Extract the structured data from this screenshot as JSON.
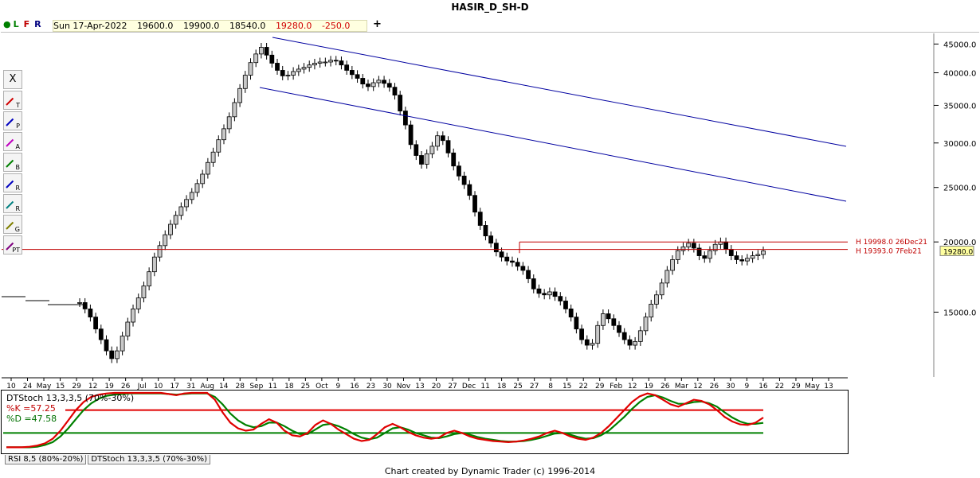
{
  "header": {
    "title": "HASIR_D_SH-D",
    "lfr": {
      "l": "L",
      "f": "F",
      "r": "R"
    },
    "ohlc": {
      "date": "Sun 17-Apr-2022",
      "open": "19600.0",
      "high": "19900.0",
      "low": "18540.0",
      "close": "19280.0",
      "change": "-250.0"
    },
    "plus": "+"
  },
  "toolbox": {
    "close_label": "X",
    "tools": [
      {
        "name": "trendline-tool",
        "icon": "trendline-icon",
        "letter": "T",
        "color": "#d00000"
      },
      {
        "name": "parallel-tool",
        "icon": "parallel-lines-icon",
        "letter": "P",
        "color": "#0000c0"
      },
      {
        "name": "alt-tool",
        "icon": "alt-projection-icon",
        "letter": "A",
        "color": "#c000c0"
      },
      {
        "name": "band-tool",
        "icon": "band-icon",
        "letter": "B",
        "color": "#008000"
      },
      {
        "name": "retracement-tool",
        "icon": "retracement-icon",
        "letter": "R",
        "color": "#0000c0"
      },
      {
        "name": "ratio-tool",
        "icon": "ratio-icon",
        "letter": "R",
        "color": "#008080"
      },
      {
        "name": "gann-tool",
        "icon": "gann-fan-icon",
        "letter": "G",
        "color": "#808000"
      },
      {
        "name": "price-time-tool",
        "icon": "price-time-icon",
        "letter": "PT",
        "color": "#800080"
      }
    ]
  },
  "chart_data": {
    "type": "candlestick",
    "title": "HASIR_D_SH-D",
    "xlabel": "",
    "ylabel": "",
    "ylim": [
      11500,
      47000
    ],
    "y_scale": "log",
    "y_ticks": [
      15000,
      20000,
      25000,
      30000,
      35000,
      40000,
      45000
    ],
    "y_tick_labels": [
      "15000.0",
      "20000.0",
      "25000.0",
      "30000.0",
      "35000.0",
      "40000.0",
      "45000.0"
    ],
    "x_tick_labels": [
      "10",
      "24",
      "May",
      "15",
      "29",
      "12",
      "19",
      "26",
      "Jul",
      "10",
      "17",
      "31",
      "Aug",
      "14",
      "28",
      "Sep",
      "11",
      "18",
      "25",
      "Oct",
      "9",
      "16",
      "23",
      "30",
      "Nov",
      "13",
      "20",
      "27",
      "Dec",
      "11",
      "18",
      "25",
      "27",
      "8",
      "15",
      "22",
      "29",
      "Feb",
      "12",
      "19",
      "26",
      "Mar",
      "12",
      "26",
      "30",
      "9",
      "16",
      "22",
      "29",
      "May",
      "13"
    ],
    "series_close_path": [
      15600,
      15200,
      14700,
      14000,
      13400,
      12800,
      12400,
      12800,
      13600,
      14400,
      15200,
      15900,
      16700,
      17700,
      18800,
      19700,
      20600,
      21500,
      22300,
      23100,
      23800,
      24500,
      25400,
      26400,
      27700,
      28900,
      30400,
      31800,
      33400,
      35400,
      37500,
      39600,
      41700,
      43200,
      44400,
      43000,
      41600,
      40400,
      39500,
      39600,
      40200,
      40600,
      40900,
      41300,
      41600,
      41800,
      41800,
      42100,
      42000,
      41300,
      40400,
      39700,
      39100,
      38200,
      37800,
      38400,
      38800,
      38300,
      37700,
      36500,
      34200,
      32300,
      29800,
      28500,
      27500,
      28700,
      29600,
      30900,
      30300,
      28800,
      27300,
      26200,
      25300,
      24200,
      22600,
      21400,
      20500,
      19900,
      19200,
      18800,
      18500,
      18400,
      18100,
      17800,
      17200,
      16500,
      16200,
      16100,
      16300,
      16000,
      15700,
      15200,
      14700,
      14000,
      13400,
      13100,
      13200,
      14200,
      14900,
      14600,
      14200,
      13800,
      13400,
      13100,
      13300,
      13900,
      14700,
      15500,
      16100,
      16900,
      17800,
      18600,
      19300,
      19600,
      19900,
      19500,
      18900,
      18700,
      19300,
      19800,
      20000,
      19400,
      18900,
      18600,
      18500,
      18700,
      18900,
      19000,
      19280
    ],
    "price_markers": [
      {
        "label": "H 19998.0 26Dec21",
        "value": 19998,
        "color": "#c00000"
      },
      {
        "label": "H 19393.0 7Feb21",
        "value": 19393,
        "color": "#c00000"
      }
    ],
    "last_price": {
      "label": "19280.0",
      "value": 19280
    },
    "horizontal_line": 19393,
    "channel": {
      "upper": [
        {
          "date": "Sep 11",
          "y": 46200
        },
        {
          "date": "after May 13",
          "y": 31000
        }
      ],
      "lower": [
        {
          "date": "Sep 11",
          "y": 38800
        },
        {
          "date": "after May 13",
          "y": 24900
        }
      ]
    },
    "indicator": {
      "name": "DTStoch 13,3,3,5 (70%-30%)",
      "k_label": "%K =",
      "k_value": "57.25",
      "d_label": "%D =",
      "d_value": "47.58",
      "upper_band": 70,
      "lower_band": 30,
      "k_color": "#e00000",
      "d_color": "#008000",
      "k_series": [
        5,
        5,
        5,
        6,
        8,
        12,
        20,
        34,
        52,
        70,
        84,
        93,
        97,
        99,
        100,
        100,
        100,
        100,
        100,
        100,
        100,
        98,
        96,
        99,
        100,
        100,
        100,
        88,
        66,
        48,
        38,
        34,
        36,
        46,
        54,
        48,
        34,
        26,
        24,
        30,
        44,
        52,
        46,
        36,
        28,
        20,
        16,
        18,
        28,
        40,
        46,
        40,
        32,
        26,
        22,
        20,
        22,
        30,
        34,
        30,
        24,
        20,
        18,
        16,
        15,
        14,
        15,
        17,
        20,
        24,
        30,
        34,
        30,
        24,
        20,
        18,
        22,
        30,
        42,
        56,
        70,
        84,
        94,
        99,
        96,
        88,
        80,
        76,
        82,
        88,
        86,
        80,
        70,
        58,
        50,
        45,
        44,
        48,
        57
      ],
      "d_series": [
        5,
        5,
        5,
        5,
        6,
        9,
        14,
        24,
        38,
        54,
        70,
        82,
        90,
        95,
        97,
        98,
        99,
        99,
        99,
        99,
        99,
        98,
        97,
        98,
        99,
        99,
        99,
        93,
        80,
        64,
        52,
        44,
        40,
        42,
        48,
        48,
        42,
        34,
        28,
        28,
        36,
        44,
        46,
        42,
        36,
        28,
        22,
        19,
        22,
        30,
        38,
        40,
        36,
        30,
        26,
        22,
        21,
        24,
        28,
        30,
        27,
        23,
        20,
        18,
        16,
        15,
        15,
        16,
        18,
        21,
        25,
        29,
        30,
        27,
        23,
        20,
        21,
        26,
        34,
        46,
        58,
        72,
        84,
        93,
        96,
        92,
        86,
        81,
        81,
        84,
        85,
        82,
        76,
        66,
        57,
        50,
        46,
        46,
        47.58
      ]
    }
  },
  "indicator_tabs": [
    "RSI 8,5 (80%-20%)",
    "DTStoch 13,3,3,5 (70%-30%)"
  ],
  "footer": {
    "credit": "Chart created by Dynamic Trader  (c)  1996-2014"
  }
}
